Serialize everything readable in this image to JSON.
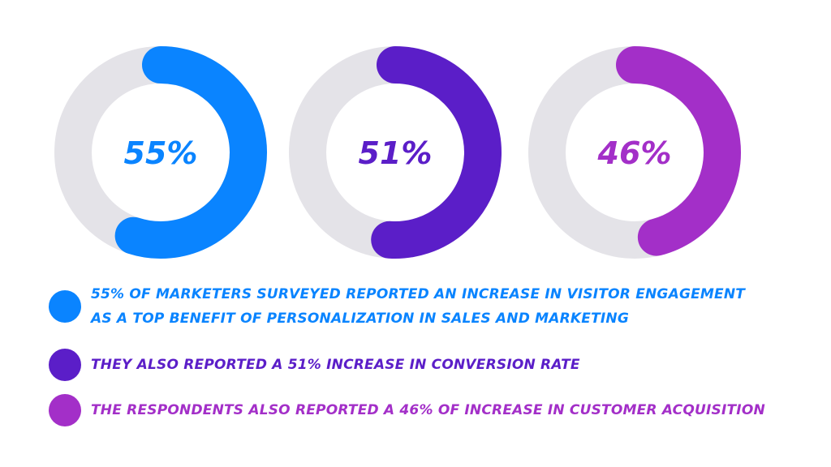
{
  "chart_data": {
    "type": "pie",
    "variant": "donut",
    "series": [
      {
        "label": "55%",
        "value": 55,
        "color": "#0a84ff"
      },
      {
        "label": "51%",
        "value": 51,
        "color": "#5b1ec8"
      },
      {
        "label": "46%",
        "value": 46,
        "color": "#a32fc8"
      }
    ],
    "track_color": "#e4e3e8"
  },
  "legend": [
    {
      "lines": [
        "55% of marketers surveyed reported an increase in visitor engagement",
        "as a top benefit of personalization in sales and marketing"
      ],
      "color": "#0a84ff"
    },
    {
      "lines": [
        "They also reported a 51% increase in conversion rate"
      ],
      "color": "#5b1ec8"
    },
    {
      "lines": [
        "The respondents also reported a 46% of increase in customer acquisition"
      ],
      "color": "#a32fc8"
    }
  ]
}
